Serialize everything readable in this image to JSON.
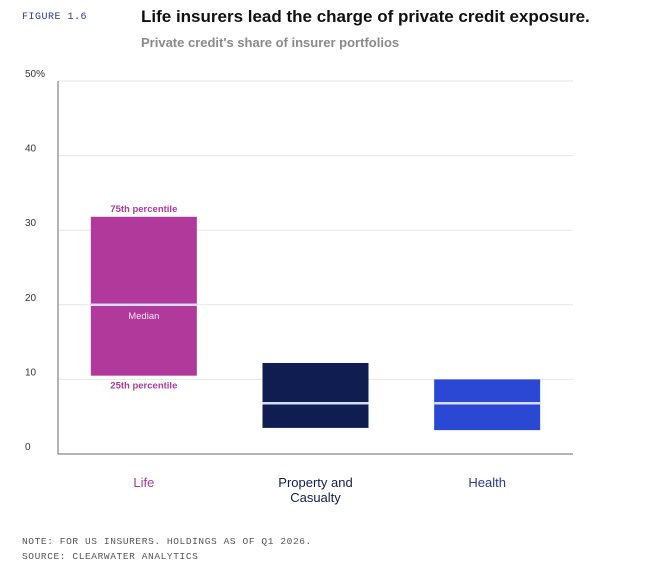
{
  "figure_label": "FIGURE 1.6",
  "footer": {
    "note": "NOTE: FOR US INSURERS. HOLDINGS AS OF Q1 2026.",
    "source": "SOURCE: CLEARWATER ANALYTICS"
  },
  "chart_data": {
    "type": "bar",
    "title": "Life insurers lead the charge of private credit exposure.",
    "subtitle": "Private credit's share of insurer portfolios",
    "xlabel": "",
    "ylabel": "",
    "ylim": [
      0,
      50
    ],
    "y_ticks": [
      "0",
      "10",
      "20",
      "30",
      "40",
      "50%"
    ],
    "y_tick_values": [
      0,
      10,
      20,
      30,
      40,
      50
    ],
    "grid": true,
    "categories": [
      "Life",
      "Property and\nCasualty",
      "Health"
    ],
    "series": [
      {
        "name": "",
        "values_p25": [
          10.5,
          3.5,
          3.2
        ],
        "values_median": [
          20.0,
          6.8,
          6.8
        ],
        "values_p75": [
          31.8,
          12.2,
          10.0
        ]
      }
    ],
    "annotations": {
      "p75": "75th percentile",
      "median": "Median",
      "p25": "25th percentile"
    },
    "colors": {
      "bars": [
        "#b0399b",
        "#0f1d50",
        "#2b48d4"
      ],
      "category_text": [
        "#b0399b",
        "#0f1d50",
        "#2b3a8c"
      ],
      "median_line": "#d7ddf5",
      "annotation": "#b0399b",
      "grid": "#e6e6e6",
      "axis": "#6a6a6a"
    }
  }
}
